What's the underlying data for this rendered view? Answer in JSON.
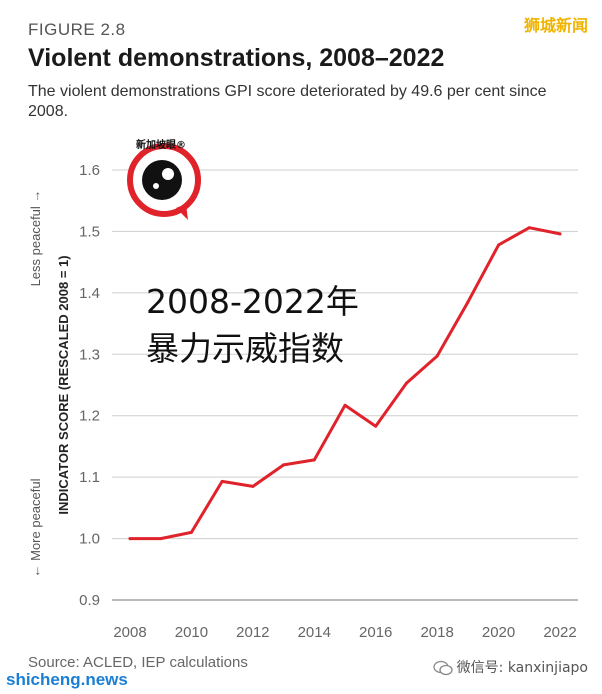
{
  "figure_label": "FIGURE 2.8",
  "title": "Violent demonstrations, 2008–2022",
  "subtitle": "The violent demonstrations GPI score deteriorated by 49.6 per cent since 2008.",
  "source": "Source: ACLED, IEP calculations",
  "overlay": {
    "line1": "2008-2022年",
    "line2": "暴力示威指数"
  },
  "logo": {
    "text": "新加坡眼®"
  },
  "watermarks": {
    "top_right": "狮城新闻",
    "bottom_left": "shicheng.news",
    "bottom_right": "微信号: kanxinjiapo"
  },
  "chart_data": {
    "type": "line",
    "ylabel": "INDICATOR SCORE (RESCALED 2008 = 1)",
    "ylabel_top": "Less peaceful →",
    "ylabel_bottom": "← More peaceful",
    "ylim": [
      0.9,
      1.6
    ],
    "yticks": [
      0.9,
      1.0,
      1.1,
      1.2,
      1.3,
      1.4,
      1.5,
      1.6
    ],
    "xticks": [
      2008,
      2010,
      2012,
      2014,
      2016,
      2018,
      2020,
      2022
    ],
    "grid": true,
    "line_color": "#e0222a",
    "x": [
      2008,
      2009,
      2010,
      2011,
      2012,
      2013,
      2014,
      2015,
      2016,
      2017,
      2018,
      2019,
      2020,
      2021,
      2022
    ],
    "y": [
      1.0,
      1.0,
      1.01,
      1.093,
      1.085,
      1.12,
      1.128,
      1.217,
      1.183,
      1.253,
      1.297,
      1.385,
      1.478,
      1.506,
      1.496
    ]
  }
}
